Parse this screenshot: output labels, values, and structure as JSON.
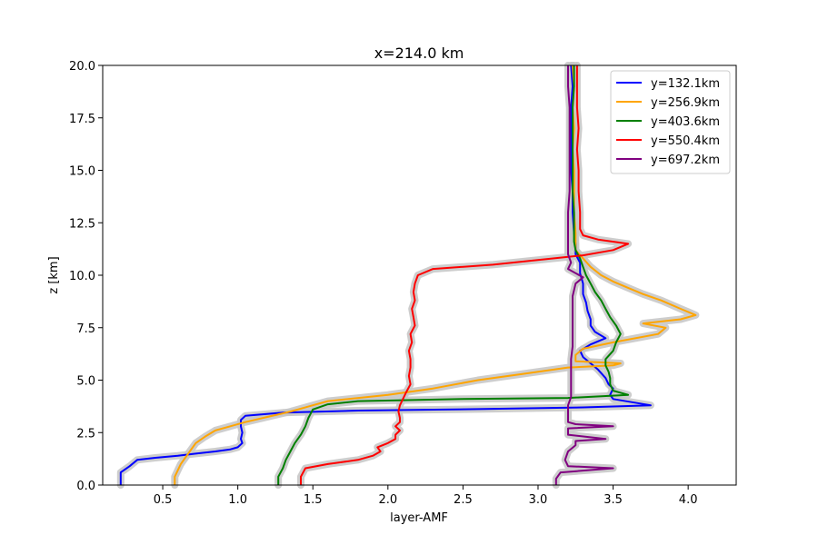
{
  "chart_data": {
    "type": "line",
    "title": "x=214.0 km",
    "xlabel": "layer-AMF",
    "ylabel": "z [km]",
    "xlim": [
      0.1,
      4.32
    ],
    "ylim": [
      0,
      20
    ],
    "xticks": [
      "0.5",
      "1.0",
      "1.5",
      "2.0",
      "2.5",
      "3.0",
      "3.5",
      "4.0"
    ],
    "yticks": [
      "0.0",
      "2.5",
      "5.0",
      "7.5",
      "10.0",
      "12.5",
      "15.0",
      "17.5",
      "20.0"
    ],
    "grid": false,
    "legend_position": "top-right",
    "uncertainty_band_color": "#c8c8c8",
    "series": [
      {
        "name": "y=132.1km",
        "color": "#0000ff",
        "points": [
          [
            0.22,
            0
          ],
          [
            0.22,
            0.6
          ],
          [
            0.28,
            0.9
          ],
          [
            0.33,
            1.2
          ],
          [
            0.45,
            1.3
          ],
          [
            0.6,
            1.4
          ],
          [
            0.72,
            1.5
          ],
          [
            0.85,
            1.6
          ],
          [
            0.95,
            1.7
          ],
          [
            1.0,
            1.8
          ],
          [
            1.03,
            2.0
          ],
          [
            1.02,
            2.2
          ],
          [
            1.03,
            2.5
          ],
          [
            1.02,
            2.8
          ],
          [
            1.02,
            3.1
          ],
          [
            1.05,
            3.3
          ],
          [
            1.3,
            3.45
          ],
          [
            1.8,
            3.55
          ],
          [
            2.6,
            3.62
          ],
          [
            3.3,
            3.7
          ],
          [
            3.75,
            3.8
          ],
          [
            3.5,
            4.1
          ],
          [
            3.48,
            4.3
          ],
          [
            3.5,
            4.6
          ],
          [
            3.47,
            4.8
          ],
          [
            3.45,
            5.1
          ],
          [
            3.4,
            5.5
          ],
          [
            3.35,
            5.8
          ],
          [
            3.3,
            6.1
          ],
          [
            3.28,
            6.4
          ],
          [
            3.35,
            6.7
          ],
          [
            3.45,
            7.0
          ],
          [
            3.38,
            7.3
          ],
          [
            3.35,
            7.6
          ],
          [
            3.35,
            7.9
          ],
          [
            3.33,
            8.3
          ],
          [
            3.32,
            8.7
          ],
          [
            3.3,
            9.1
          ],
          [
            3.3,
            9.6
          ],
          [
            3.28,
            10.1
          ],
          [
            3.28,
            10.6
          ],
          [
            3.25,
            11.0
          ],
          [
            3.25,
            11.5
          ],
          [
            3.24,
            12.0
          ],
          [
            3.23,
            13
          ],
          [
            3.23,
            14
          ],
          [
            3.22,
            15
          ],
          [
            3.22,
            16
          ],
          [
            3.22,
            17
          ],
          [
            3.22,
            18
          ],
          [
            3.23,
            19
          ],
          [
            3.22,
            20
          ]
        ]
      },
      {
        "name": "y=256.9km",
        "color": "#ffa500",
        "points": [
          [
            0.58,
            0
          ],
          [
            0.58,
            0.4
          ],
          [
            0.6,
            0.7
          ],
          [
            0.62,
            1.0
          ],
          [
            0.65,
            1.3
          ],
          [
            0.68,
            1.6
          ],
          [
            0.72,
            2.0
          ],
          [
            0.78,
            2.3
          ],
          [
            0.85,
            2.6
          ],
          [
            0.95,
            2.8
          ],
          [
            1.05,
            3.0
          ],
          [
            1.2,
            3.25
          ],
          [
            1.35,
            3.5
          ],
          [
            1.5,
            3.8
          ],
          [
            1.6,
            4.0
          ],
          [
            2.0,
            4.3
          ],
          [
            2.3,
            4.6
          ],
          [
            2.6,
            5.0
          ],
          [
            2.9,
            5.3
          ],
          [
            3.2,
            5.6
          ],
          [
            3.5,
            5.7
          ],
          [
            3.55,
            5.8
          ],
          [
            3.25,
            5.9
          ],
          [
            3.25,
            6.2
          ],
          [
            3.3,
            6.5
          ],
          [
            3.5,
            6.8
          ],
          [
            3.8,
            7.2
          ],
          [
            3.85,
            7.5
          ],
          [
            3.7,
            7.7
          ],
          [
            3.95,
            7.9
          ],
          [
            4.05,
            8.1
          ],
          [
            3.95,
            8.4
          ],
          [
            3.82,
            8.8
          ],
          [
            3.7,
            9.1
          ],
          [
            3.6,
            9.4
          ],
          [
            3.5,
            9.7
          ],
          [
            3.42,
            10.0
          ],
          [
            3.35,
            10.4
          ],
          [
            3.3,
            10.8
          ],
          [
            3.25,
            11.2
          ],
          [
            3.25,
            11.6
          ],
          [
            3.25,
            12.0
          ],
          [
            3.24,
            13
          ],
          [
            3.24,
            14
          ],
          [
            3.24,
            15
          ],
          [
            3.23,
            16
          ],
          [
            3.24,
            17
          ],
          [
            3.23,
            18
          ],
          [
            3.24,
            19
          ],
          [
            3.23,
            20
          ]
        ]
      },
      {
        "name": "y=403.6km",
        "color": "#008000",
        "points": [
          [
            1.27,
            0
          ],
          [
            1.27,
            0.4
          ],
          [
            1.3,
            0.8
          ],
          [
            1.32,
            1.2
          ],
          [
            1.35,
            1.6
          ],
          [
            1.38,
            2.0
          ],
          [
            1.42,
            2.4
          ],
          [
            1.45,
            2.8
          ],
          [
            1.47,
            3.2
          ],
          [
            1.5,
            3.6
          ],
          [
            1.6,
            3.85
          ],
          [
            1.8,
            4.0
          ],
          [
            2.5,
            4.1
          ],
          [
            3.2,
            4.15
          ],
          [
            3.6,
            4.3
          ],
          [
            3.5,
            4.5
          ],
          [
            3.48,
            4.8
          ],
          [
            3.48,
            5.1
          ],
          [
            3.47,
            5.4
          ],
          [
            3.45,
            5.7
          ],
          [
            3.45,
            6.0
          ],
          [
            3.5,
            6.4
          ],
          [
            3.52,
            6.8
          ],
          [
            3.55,
            7.2
          ],
          [
            3.52,
            7.6
          ],
          [
            3.48,
            8.0
          ],
          [
            3.45,
            8.4
          ],
          [
            3.42,
            8.8
          ],
          [
            3.38,
            9.2
          ],
          [
            3.35,
            9.6
          ],
          [
            3.32,
            10.0
          ],
          [
            3.3,
            10.4
          ],
          [
            3.28,
            10.8
          ],
          [
            3.25,
            11.2
          ],
          [
            3.24,
            11.6
          ],
          [
            3.24,
            12.0
          ],
          [
            3.24,
            13
          ],
          [
            3.23,
            14
          ],
          [
            3.23,
            15
          ],
          [
            3.23,
            16
          ],
          [
            3.23,
            17
          ],
          [
            3.23,
            18
          ],
          [
            3.24,
            19
          ],
          [
            3.24,
            20
          ]
        ]
      },
      {
        "name": "y=550.4km",
        "color": "#ff0000",
        "points": [
          [
            1.42,
            0
          ],
          [
            1.42,
            0.4
          ],
          [
            1.45,
            0.8
          ],
          [
            1.6,
            1.0
          ],
          [
            1.8,
            1.2
          ],
          [
            1.9,
            1.4
          ],
          [
            1.95,
            1.6
          ],
          [
            1.93,
            1.8
          ],
          [
            2.0,
            2.0
          ],
          [
            2.05,
            2.2
          ],
          [
            2.05,
            2.4
          ],
          [
            2.08,
            2.6
          ],
          [
            2.05,
            2.8
          ],
          [
            2.08,
            3.0
          ],
          [
            2.08,
            3.2
          ],
          [
            2.07,
            3.5
          ],
          [
            2.08,
            3.8
          ],
          [
            2.1,
            4.1
          ],
          [
            2.12,
            4.4
          ],
          [
            2.15,
            4.8
          ],
          [
            2.14,
            5.2
          ],
          [
            2.15,
            5.6
          ],
          [
            2.15,
            6.0
          ],
          [
            2.14,
            6.4
          ],
          [
            2.16,
            6.8
          ],
          [
            2.15,
            7.2
          ],
          [
            2.18,
            7.6
          ],
          [
            2.17,
            8.0
          ],
          [
            2.16,
            8.4
          ],
          [
            2.18,
            8.8
          ],
          [
            2.17,
            9.2
          ],
          [
            2.18,
            9.6
          ],
          [
            2.2,
            10.0
          ],
          [
            2.3,
            10.3
          ],
          [
            2.7,
            10.5
          ],
          [
            3.1,
            10.8
          ],
          [
            3.3,
            10.95
          ],
          [
            3.5,
            11.2
          ],
          [
            3.6,
            11.5
          ],
          [
            3.4,
            11.7
          ],
          [
            3.3,
            11.9
          ],
          [
            3.28,
            12.2
          ],
          [
            3.28,
            13
          ],
          [
            3.27,
            14
          ],
          [
            3.27,
            15
          ],
          [
            3.26,
            16
          ],
          [
            3.27,
            17
          ],
          [
            3.26,
            18
          ],
          [
            3.26,
            19
          ],
          [
            3.26,
            20
          ]
        ]
      },
      {
        "name": "y=697.2km",
        "color": "#800080",
        "points": [
          [
            3.12,
            0
          ],
          [
            3.12,
            0.3
          ],
          [
            3.15,
            0.6
          ],
          [
            3.5,
            0.8
          ],
          [
            3.2,
            0.9
          ],
          [
            3.18,
            1.2
          ],
          [
            3.2,
            1.6
          ],
          [
            3.25,
            1.9
          ],
          [
            3.25,
            2.1
          ],
          [
            3.45,
            2.2
          ],
          [
            3.2,
            2.4
          ],
          [
            3.2,
            2.7
          ],
          [
            3.5,
            2.8
          ],
          [
            3.25,
            2.9
          ],
          [
            3.2,
            3.0
          ],
          [
            3.2,
            3.4
          ],
          [
            3.2,
            3.8
          ],
          [
            3.22,
            4.2
          ],
          [
            3.22,
            4.8
          ],
          [
            3.22,
            5.4
          ],
          [
            3.22,
            6.0
          ],
          [
            3.23,
            6.6
          ],
          [
            3.23,
            7.2
          ],
          [
            3.23,
            7.8
          ],
          [
            3.23,
            8.4
          ],
          [
            3.23,
            9.0
          ],
          [
            3.25,
            9.6
          ],
          [
            3.3,
            9.9
          ],
          [
            3.2,
            10.3
          ],
          [
            3.22,
            10.6
          ],
          [
            3.2,
            11.0
          ],
          [
            3.2,
            11.5
          ],
          [
            3.2,
            12.0
          ],
          [
            3.2,
            12.5
          ],
          [
            3.2,
            13
          ],
          [
            3.21,
            14
          ],
          [
            3.21,
            15
          ],
          [
            3.21,
            16
          ],
          [
            3.21,
            17
          ],
          [
            3.21,
            18
          ],
          [
            3.2,
            19
          ],
          [
            3.2,
            20
          ]
        ]
      }
    ]
  }
}
